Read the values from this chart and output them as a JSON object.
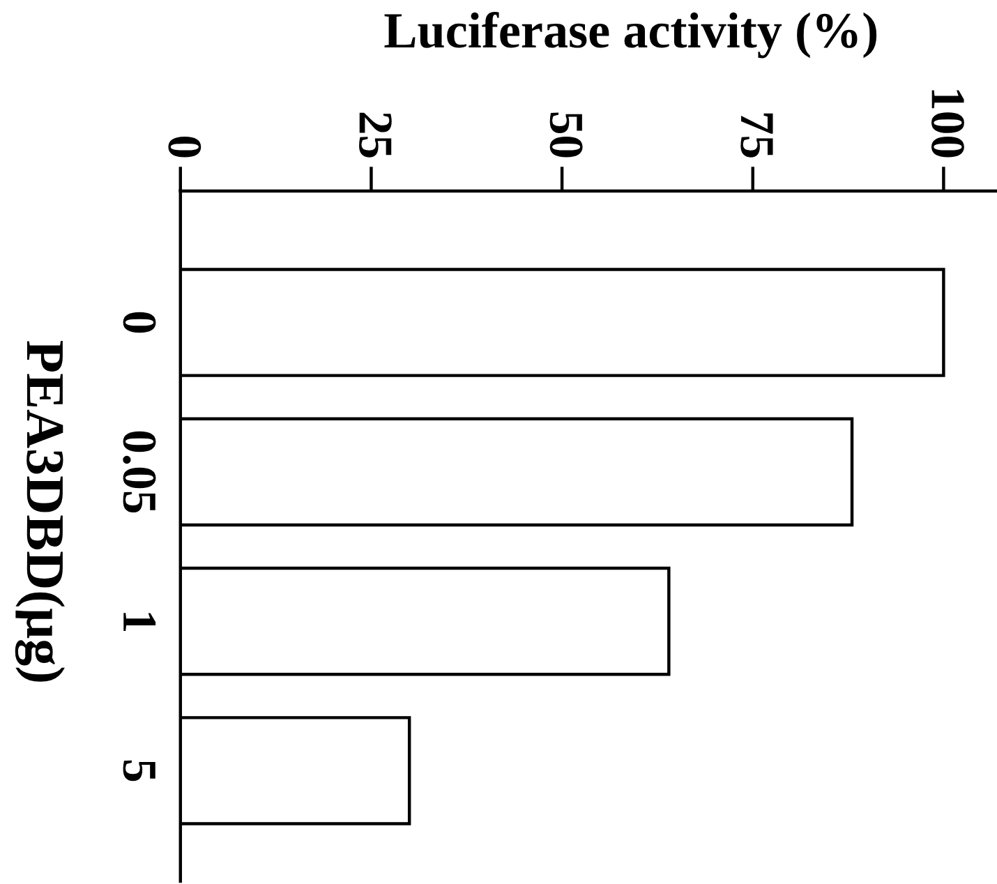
{
  "chart_data": {
    "type": "bar",
    "orientation": "horizontal",
    "xlabel": "Luciferase activity (%)",
    "ylabel": "PEA3DBD(μg)",
    "categories": [
      "0",
      "0.05",
      "1",
      "5"
    ],
    "values": [
      100,
      88,
      64,
      30
    ],
    "color": "#ffffff",
    "xlim": [
      0,
      107
    ],
    "xticks": [
      0,
      25,
      50,
      75,
      100
    ],
    "grid": false
  }
}
